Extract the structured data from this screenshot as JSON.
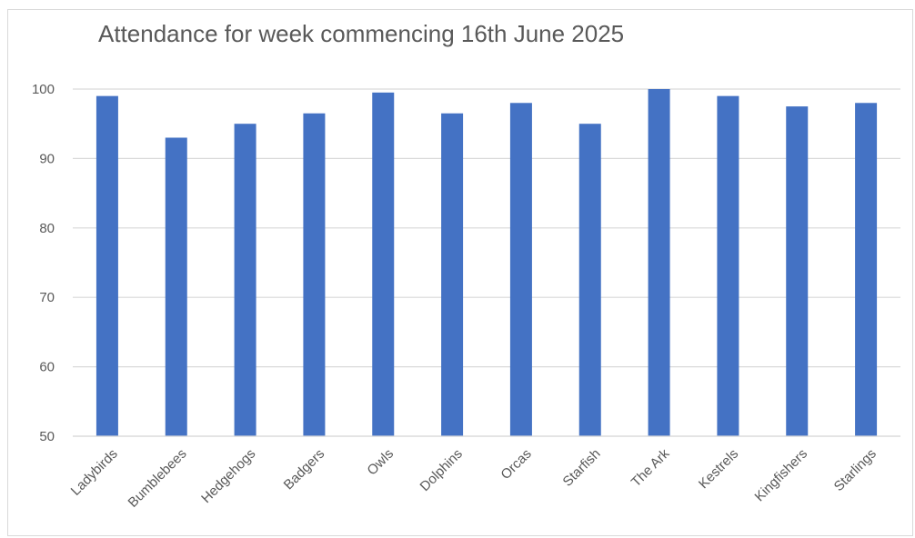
{
  "chart_data": {
    "type": "bar",
    "title": "Attendance for week commencing 16th June 2025",
    "xlabel": "",
    "ylabel": "",
    "categories": [
      "Ladybirds",
      "Bumblebees",
      "Hedgehogs",
      "Badgers",
      "Owls",
      "Dolphins",
      "Orcas",
      "Starfish",
      "The Ark",
      "Kestrels",
      "Kingfishers",
      "Starlings"
    ],
    "values": [
      99,
      93,
      95,
      96.5,
      99.5,
      96.5,
      98,
      95,
      100,
      99,
      97.5,
      98
    ],
    "ylim": [
      50,
      100
    ],
    "yticks": [
      50,
      60,
      70,
      80,
      90,
      100
    ],
    "grid": true,
    "legend": "none",
    "bar_color": "#4472c4",
    "grid_color": "#d9d9d9"
  }
}
